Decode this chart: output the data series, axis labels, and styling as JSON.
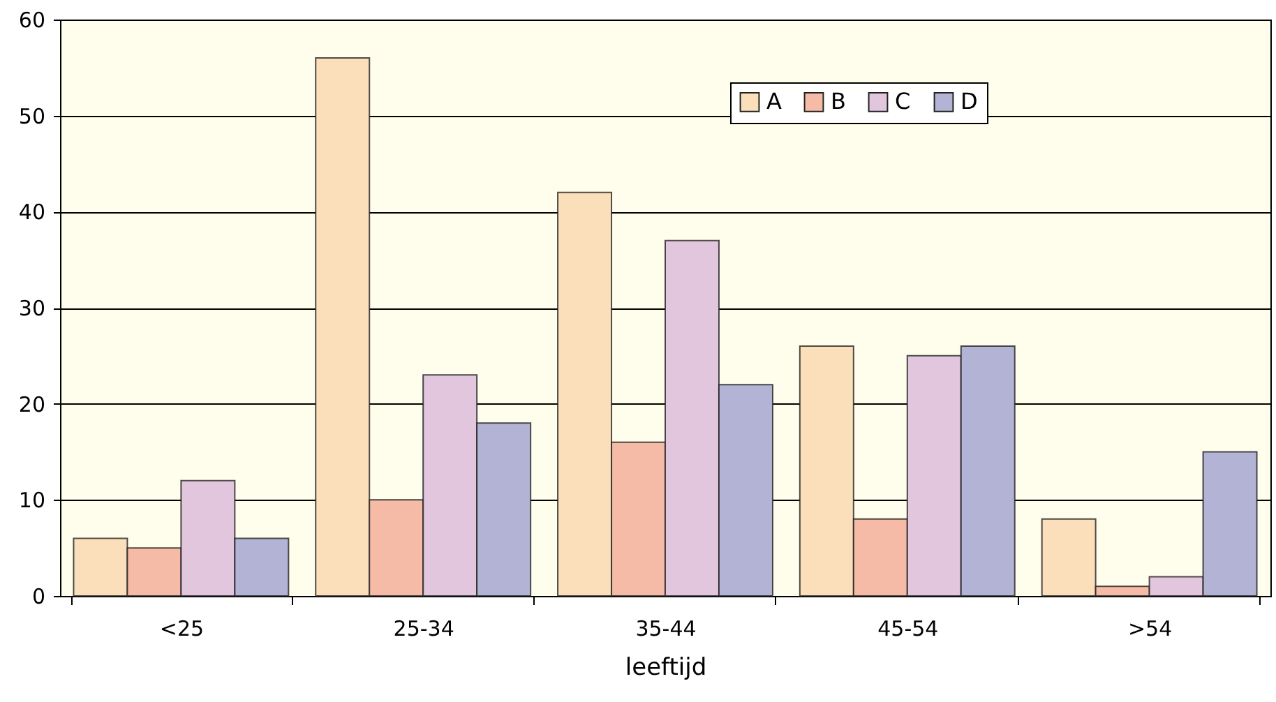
{
  "chart_data": {
    "type": "bar",
    "xlabel": "leeftijd",
    "categories": [
      "<25",
      "25-34",
      "35-44",
      "45-54",
      ">54"
    ],
    "series": [
      {
        "name": "A",
        "color": "#fbdfbb",
        "values": [
          6,
          56,
          42,
          26,
          8
        ]
      },
      {
        "name": "B",
        "color": "#f6bba7",
        "values": [
          5,
          10,
          16,
          8,
          1
        ]
      },
      {
        "name": "C",
        "color": "#e2c6de",
        "values": [
          12,
          23,
          37,
          25,
          2
        ]
      },
      {
        "name": "D",
        "color": "#b3b3d6",
        "values": [
          6,
          18,
          22,
          26,
          15
        ]
      }
    ],
    "ylim": [
      0,
      60
    ],
    "yticks": [
      0,
      10,
      20,
      30,
      40,
      50,
      60
    ],
    "grid": "y",
    "legend": "top right"
  }
}
